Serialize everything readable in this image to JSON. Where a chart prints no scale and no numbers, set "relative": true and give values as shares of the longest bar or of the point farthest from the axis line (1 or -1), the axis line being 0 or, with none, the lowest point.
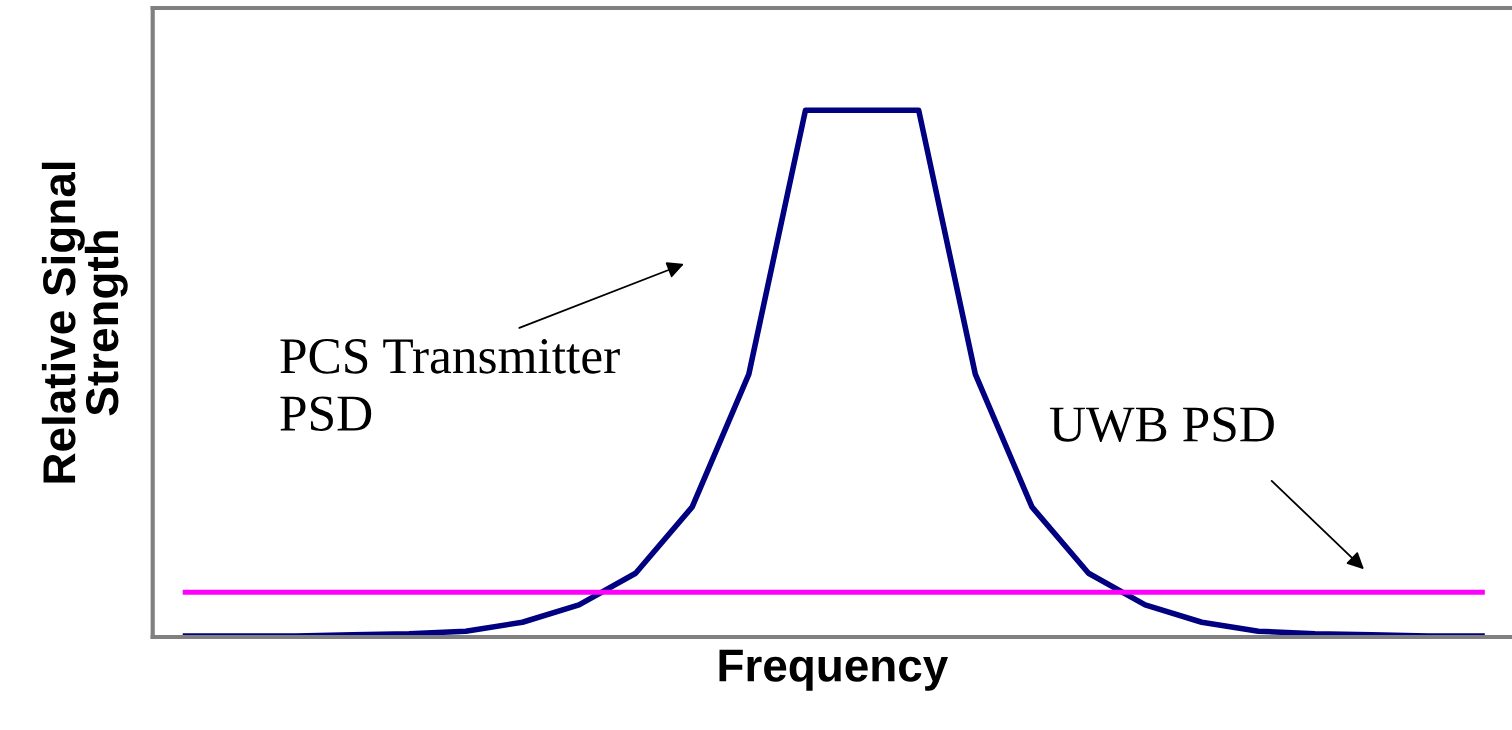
{
  "chart_data": {
    "type": "line",
    "relative": true,
    "xlabel": "Frequency",
    "ylabel": "Relative Signal\nStrength",
    "categories": [
      null,
      null,
      null,
      null,
      null,
      null,
      null,
      null,
      null,
      null,
      null,
      null,
      null,
      null,
      null,
      null,
      null,
      null,
      null,
      null,
      null,
      null,
      null,
      null
    ],
    "series": [
      {
        "color": "#000080",
        "values": [
          0.002,
          0.002,
          0.002,
          0.004,
          0.006,
          0.011,
          0.028,
          0.061,
          0.121,
          0.247,
          0.499,
          1,
          1,
          1,
          0.499,
          0.247,
          0.121,
          0.061,
          0.028,
          0.011,
          0.006,
          0.004,
          0.002,
          0.002
        ]
      },
      {
        "color": "#ff00ff",
        "values": [
          0.085,
          0.085,
          0.085,
          0.085,
          0.085,
          0.085,
          0.085,
          0.085,
          0.085,
          0.085,
          0.085,
          0.085,
          0.085,
          0.085,
          0.085,
          0.085,
          0.085,
          0.085,
          0.085,
          0.085,
          0.085,
          0.085,
          0.085,
          0.085
        ]
      }
    ],
    "annotations": [
      "PCS Transmitter\nPSD",
      "UWB PSD"
    ],
    "tick_labels": false,
    "grid": false,
    "legend": false,
    "marker": "none",
    "line_style": "solid"
  }
}
